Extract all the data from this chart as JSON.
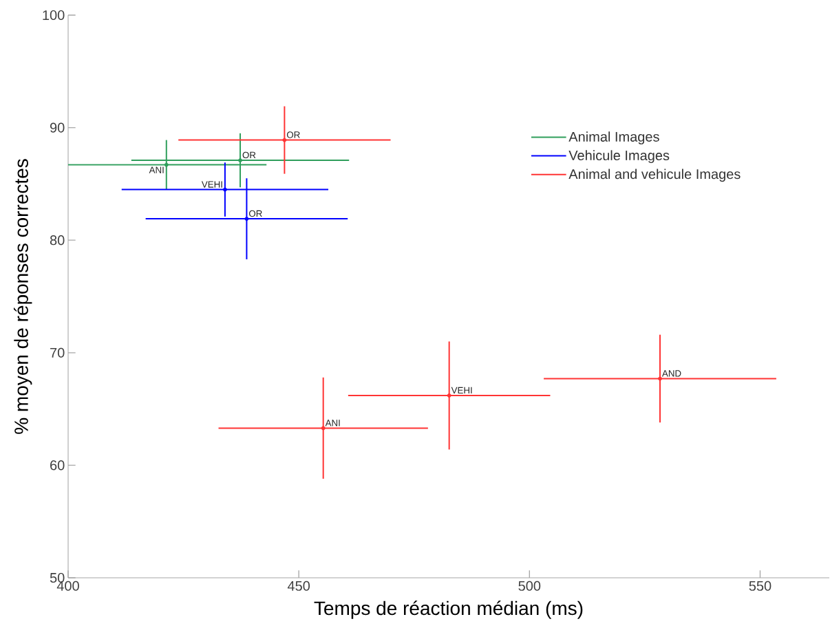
{
  "chart_data": {
    "type": "scatter",
    "xlabel": "Temps de réaction médian (ms)",
    "ylabel": "% moyen de réponses correctes",
    "xlim": [
      400,
      565
    ],
    "ylim": [
      50,
      100
    ],
    "xticks": [
      400,
      450,
      500,
      550
    ],
    "yticks": [
      50,
      60,
      70,
      80,
      90,
      100
    ],
    "grid": false,
    "legend": "top right",
    "series": [
      {
        "name": "Animal Images",
        "color": "#2e9e5b",
        "x": [
          421.3,
          437.3
        ],
        "values": [
          86.7,
          87.1
        ],
        "xerrors": [
          21.7,
          23.6
        ],
        "errors": [
          2.2,
          2.4
        ]
      },
      {
        "name": "Vehicule Images",
        "color": "#0000ff",
        "x": [
          434.0,
          438.7
        ],
        "values": [
          84.5,
          81.9
        ],
        "xerrors": [
          22.4,
          21.9
        ],
        "errors": [
          2.4,
          3.6
        ]
      },
      {
        "name": "Animal and vehicule Images",
        "color": "#ff3333",
        "x": [
          446.9,
          455.3,
          482.6,
          528.3
        ],
        "values": [
          88.9,
          63.3,
          66.2,
          67.7
        ],
        "xerrors": [
          23.0,
          22.7,
          21.9,
          25.2
        ],
        "errors": [
          3.0,
          4.5,
          4.8,
          3.9
        ]
      }
    ],
    "annotations": [
      {
        "text": "ANI",
        "x": 421.3,
        "y": 86.7
      },
      {
        "text": "OR",
        "x": 437.3,
        "y": 87.1
      },
      {
        "text": "VEHI",
        "x": 434.0,
        "y": 84.5
      },
      {
        "text": "OR",
        "x": 438.7,
        "y": 81.9
      },
      {
        "text": "OR",
        "x": 446.9,
        "y": 88.9
      },
      {
        "text": "ANI",
        "x": 455.3,
        "y": 63.3
      },
      {
        "text": "VEHI",
        "x": 482.6,
        "y": 66.2
      },
      {
        "text": "AND",
        "x": 528.3,
        "y": 67.7
      }
    ]
  }
}
